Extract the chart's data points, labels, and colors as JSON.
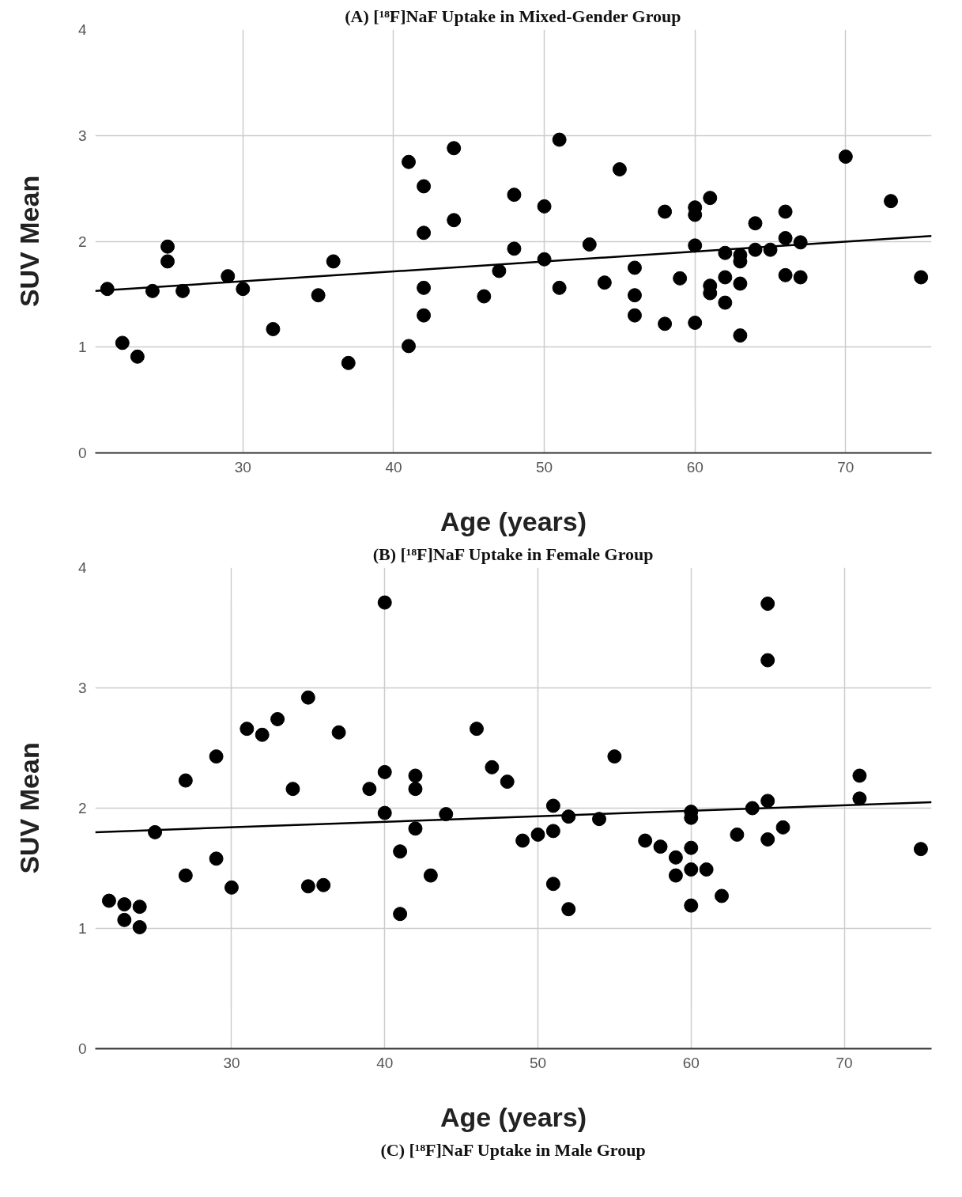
{
  "chart_data": [
    {
      "type": "scatter",
      "title": "(A) [¹⁸F]NaF Uptake in Mixed-Gender Group",
      "xlabel": "Age (years)",
      "ylabel": "SUV Mean",
      "xlim": [
        20.2,
        75.7
      ],
      "ylim": [
        0,
        4
      ],
      "xticks": [
        30,
        40,
        50,
        60,
        70
      ],
      "yticks": [
        0,
        1,
        2,
        3,
        4
      ],
      "grid": true,
      "series": [
        {
          "marker": "circle",
          "color": "#000000",
          "x": [
            21,
            22,
            23,
            24,
            25,
            25,
            26,
            29,
            30,
            32,
            35,
            36,
            37,
            41,
            41,
            42,
            42,
            42,
            42,
            44,
            44,
            46,
            47,
            48,
            48,
            50,
            50,
            51,
            51,
            53,
            54,
            55,
            56,
            56,
            56,
            58,
            58,
            59,
            60,
            60,
            60,
            60,
            61,
            61,
            61,
            62,
            62,
            62,
            63,
            63,
            63,
            63,
            64,
            64,
            65,
            66,
            66,
            66,
            67,
            67,
            70,
            73,
            75
          ],
          "values": [
            1.55,
            1.04,
            0.91,
            1.53,
            1.95,
            1.81,
            1.53,
            1.67,
            1.55,
            1.17,
            1.49,
            1.81,
            0.85,
            2.75,
            1.01,
            2.52,
            2.08,
            1.56,
            1.3,
            2.88,
            2.2,
            1.48,
            1.72,
            2.44,
            1.93,
            2.33,
            1.83,
            2.96,
            1.56,
            1.97,
            1.61,
            2.68,
            1.75,
            1.49,
            1.3,
            2.28,
            1.22,
            1.65,
            2.32,
            2.25,
            1.96,
            1.23,
            2.41,
            1.58,
            1.51,
            1.89,
            1.66,
            1.42,
            1.87,
            1.81,
            1.6,
            1.11,
            2.17,
            1.92,
            1.92,
            2.28,
            2.03,
            1.68,
            1.99,
            1.66,
            2.8,
            2.38,
            1.66
          ]
        },
        {
          "type": "line",
          "color": "#000000",
          "x": [
            20.2,
            75.7
          ],
          "values": [
            1.53,
            2.05
          ]
        }
      ]
    },
    {
      "type": "scatter",
      "title": "(B) [¹⁸F]NaF Uptake in Female Group",
      "xlabel": "Age (years)",
      "ylabel": "SUV Mean",
      "xlim": [
        21.1,
        75.7
      ],
      "ylim": [
        0,
        4
      ],
      "xticks": [
        30,
        40,
        50,
        60,
        70
      ],
      "yticks": [
        0,
        1,
        2,
        3,
        4
      ],
      "grid": true,
      "annotations": [
        "(C) [¹⁸F]NaF Uptake in Male Group"
      ],
      "series": [
        {
          "marker": "circle",
          "color": "#000000",
          "x": [
            22,
            23,
            23,
            24,
            24,
            25,
            27,
            27,
            29,
            29,
            30,
            31,
            32,
            33,
            34,
            35,
            35,
            36,
            37,
            39,
            40,
            40,
            40,
            41,
            41,
            42,
            42,
            42,
            43,
            44,
            46,
            47,
            48,
            49,
            50,
            51,
            51,
            51,
            52,
            52,
            54,
            55,
            57,
            58,
            59,
            59,
            60,
            60,
            60,
            60,
            60,
            61,
            62,
            63,
            64,
            65,
            65,
            65,
            65,
            66,
            71,
            71,
            75
          ],
          "values": [
            1.23,
            1.2,
            1.07,
            1.18,
            1.01,
            1.8,
            2.23,
            1.44,
            2.43,
            1.58,
            1.34,
            2.66,
            2.61,
            2.74,
            2.16,
            2.92,
            1.35,
            1.36,
            2.63,
            2.16,
            3.71,
            2.3,
            1.96,
            1.64,
            1.12,
            2.27,
            2.16,
            1.83,
            1.44,
            1.95,
            2.66,
            2.34,
            2.22,
            1.73,
            1.78,
            2.02,
            1.81,
            1.37,
            1.93,
            1.16,
            1.91,
            2.43,
            1.73,
            1.68,
            1.59,
            1.44,
            1.97,
            1.92,
            1.67,
            1.49,
            1.19,
            1.49,
            1.27,
            1.78,
            2.0,
            3.7,
            3.23,
            2.06,
            1.74,
            1.84,
            2.27,
            2.08,
            1.66
          ]
        },
        {
          "type": "line",
          "color": "#000000",
          "x": [
            21.1,
            75.7
          ],
          "values": [
            1.8,
            2.05
          ]
        }
      ]
    }
  ]
}
